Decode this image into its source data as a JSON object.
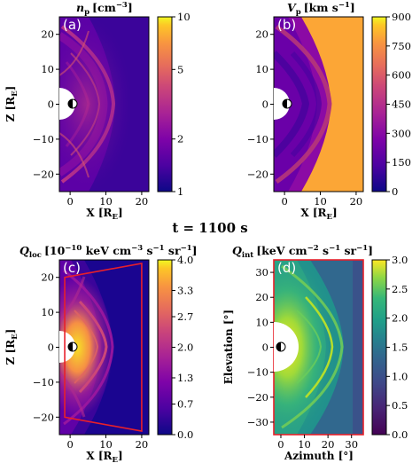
{
  "time_label": "t = 1100 s",
  "chart_data": [
    {
      "type": "heatmap",
      "panel": "(a)",
      "title": "n_p [cm^-3]",
      "title_parts": {
        "sym": "n",
        "sub": "p",
        "unit": "[cm",
        "exp": "−3",
        "close": "]"
      },
      "xlabel": "X [R_E]",
      "xlabel_parts": {
        "main": "X [R",
        "sub": "E",
        "close": "]"
      },
      "ylabel": "Z [R_E]",
      "ylabel_parts": {
        "main": "Z [R",
        "sub": "E",
        "close": "]"
      },
      "xlim": [
        -3,
        22
      ],
      "ylim": [
        -25,
        25
      ],
      "xticks": [
        "0",
        "10",
        "20"
      ],
      "xtick_values": [
        0,
        10,
        20
      ],
      "yticks": [
        "20",
        "10",
        "0",
        "−10",
        "−20"
      ],
      "ytick_values": [
        20,
        10,
        0,
        -10,
        -20
      ],
      "colorbar": {
        "scale": "log",
        "range": [
          1,
          10
        ],
        "ticks": [
          "10",
          "5",
          "2",
          "1"
        ],
        "tick_values": [
          10,
          5,
          2,
          1
        ],
        "colormap": "plasma"
      }
    },
    {
      "type": "heatmap",
      "panel": "(b)",
      "title": "V_p [km s^-1]",
      "title_parts": {
        "sym": "V",
        "sub": "p",
        "unit": "[km s",
        "exp": "−1",
        "close": "]"
      },
      "xlabel": "X [R_E]",
      "xlabel_parts": {
        "main": "X [R",
        "sub": "E",
        "close": "]"
      },
      "ylabel": "",
      "xlim": [
        -3,
        22
      ],
      "ylim": [
        -25,
        25
      ],
      "xticks": [
        "0",
        "10",
        "20"
      ],
      "xtick_values": [
        0,
        10,
        20
      ],
      "yticks": [
        "20",
        "10",
        "0",
        "−10",
        "−20"
      ],
      "ytick_values": [
        20,
        10,
        0,
        -10,
        -20
      ],
      "colorbar": {
        "scale": "linear",
        "range": [
          0,
          900
        ],
        "ticks": [
          "900",
          "750",
          "600",
          "450",
          "300",
          "150",
          "0"
        ],
        "tick_values": [
          900,
          750,
          600,
          450,
          300,
          150,
          0
        ],
        "colormap": "plasma"
      }
    },
    {
      "type": "heatmap",
      "panel": "(c)",
      "title": "Q_loc [10^-10 keV cm^-3 s^-1 sr^-1]",
      "title_parts": {
        "sym": "Q",
        "sub": "loc",
        "unit": "[10",
        "exp1": "−10",
        "mid1": " keV cm",
        "exp2": "−3",
        "mid2": " s",
        "exp3": "−1",
        "mid3": " sr",
        "exp4": "−1",
        "close": "]"
      },
      "xlabel": "X [R_E]",
      "xlabel_parts": {
        "main": "X [R",
        "sub": "E",
        "close": "]"
      },
      "ylabel": "Z [R_E]",
      "ylabel_parts": {
        "main": "Z [R",
        "sub": "E",
        "close": "]"
      },
      "xlim": [
        -3,
        22
      ],
      "ylim": [
        -25,
        25
      ],
      "xticks": [
        "0",
        "10",
        "20"
      ],
      "xtick_values": [
        0,
        10,
        20
      ],
      "yticks": [
        "20",
        "10",
        "0",
        "−10",
        "−20"
      ],
      "ytick_values": [
        20,
        10,
        0,
        -10,
        -20
      ],
      "colorbar": {
        "scale": "linear",
        "range": [
          0,
          4
        ],
        "ticks": [
          "4.0",
          "3.3",
          "2.7",
          "2.0",
          "1.3",
          "0.7",
          "0.0"
        ],
        "tick_values": [
          4.0,
          3.3,
          2.7,
          2.0,
          1.3,
          0.7,
          0.0
        ],
        "colormap": "plasma"
      },
      "fov_outline": {
        "color": "#e8202a",
        "corners": [
          [
            -1.5,
            20
          ],
          [
            20,
            24
          ],
          [
            20,
            -24
          ],
          [
            -1.5,
            -20
          ]
        ]
      }
    },
    {
      "type": "heatmap",
      "panel": "(d)",
      "title": "Q_int [keV cm^-2 s^-1 sr^-1]",
      "title_parts": {
        "sym": "Q",
        "sub": "int",
        "unit": "[keV cm",
        "exp1": "−2",
        "mid1": " s",
        "exp2": "−1",
        "mid2": " sr",
        "exp3": "−1",
        "close": "]"
      },
      "xlabel": "Azimuth [°]",
      "ylabel": "Elevation [°]",
      "xlim": [
        -3,
        35
      ],
      "ylim": [
        -35,
        35
      ],
      "xticks": [
        "0",
        "10",
        "20",
        "30"
      ],
      "xtick_values": [
        0,
        10,
        20,
        30
      ],
      "yticks": [
        "30",
        "20",
        "10",
        "0",
        "−10",
        "−20",
        "−30"
      ],
      "ytick_values": [
        30,
        20,
        10,
        0,
        -10,
        -20,
        -30
      ],
      "colorbar": {
        "scale": "linear",
        "range": [
          0,
          3
        ],
        "ticks": [
          "3.0",
          "2.5",
          "2.0",
          "1.5",
          "1.0",
          "0.5",
          "0.0"
        ],
        "tick_values": [
          3.0,
          2.5,
          2.0,
          1.5,
          1.0,
          0.5,
          0.0
        ],
        "colormap": "viridis"
      },
      "frame_color": "#e8202a"
    }
  ]
}
